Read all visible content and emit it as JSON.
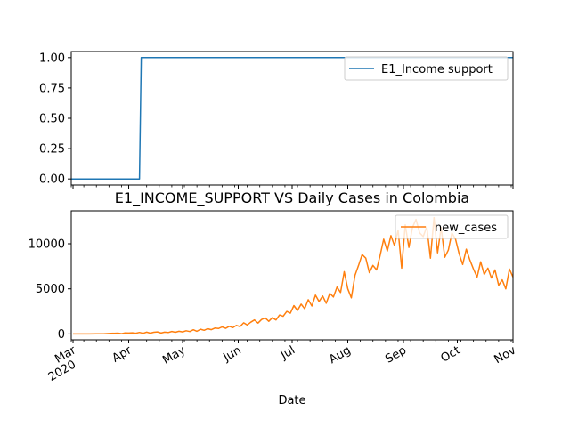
{
  "colors": {
    "top_series": "#1f77b4",
    "bottom_series": "#ff7f0e",
    "axis": "#000000",
    "legend_border": "#cccccc"
  },
  "chart_data": [
    {
      "type": "line",
      "title": "",
      "xlabel": "",
      "ylabel": "",
      "x_range": [
        "2020-02-29",
        "2020-11-01"
      ],
      "ylim": [
        -0.05,
        1.05
      ],
      "y_ticks": [
        "0.00",
        "0.25",
        "0.50",
        "0.75",
        "1.00"
      ],
      "y_tick_values": [
        0,
        0.25,
        0.5,
        0.75,
        1.0
      ],
      "grid": false,
      "legend_position": "upper right",
      "x_tick_labels_visible": false,
      "series": [
        {
          "name": "E1_Income support",
          "color": "#1f77b4",
          "points": [
            [
              "2020-02-29",
              0
            ],
            [
              "2020-04-07",
              0
            ],
            [
              "2020-04-08",
              1
            ],
            [
              "2020-11-01",
              1
            ]
          ]
        }
      ]
    },
    {
      "type": "line",
      "title": "E1_INCOME_SUPPORT VS Daily Cases in Colombia",
      "xlabel": "Date",
      "ylabel": "",
      "x_range": [
        "2020-02-29",
        "2020-11-01"
      ],
      "ylim": [
        -650,
        13650
      ],
      "y_ticks": [
        "0",
        "5000",
        "10000"
      ],
      "y_tick_values": [
        0,
        5000,
        10000
      ],
      "x_major_ticks": [
        {
          "date": "2020-03-01",
          "label": "Mar",
          "sublabel": "2020"
        },
        {
          "date": "2020-04-01",
          "label": "Apr",
          "sublabel": ""
        },
        {
          "date": "2020-05-01",
          "label": "May",
          "sublabel": ""
        },
        {
          "date": "2020-06-01",
          "label": "Jun",
          "sublabel": ""
        },
        {
          "date": "2020-07-01",
          "label": "Jul",
          "sublabel": ""
        },
        {
          "date": "2020-08-01",
          "label": "Aug",
          "sublabel": ""
        },
        {
          "date": "2020-09-01",
          "label": "Sep",
          "sublabel": ""
        },
        {
          "date": "2020-10-01",
          "label": "Oct",
          "sublabel": ""
        },
        {
          "date": "2020-11-01",
          "label": "Nov",
          "sublabel": ""
        }
      ],
      "grid": false,
      "legend_position": "upper right",
      "series": [
        {
          "name": "new_cases",
          "color": "#ff7f0e",
          "points": [
            [
              "2020-03-01",
              0
            ],
            [
              "2020-03-06",
              0
            ],
            [
              "2020-03-10",
              2
            ],
            [
              "2020-03-14",
              10
            ],
            [
              "2020-03-18",
              25
            ],
            [
              "2020-03-22",
              60
            ],
            [
              "2020-03-26",
              90
            ],
            [
              "2020-03-28",
              30
            ],
            [
              "2020-03-30",
              120
            ],
            [
              "2020-04-01",
              100
            ],
            [
              "2020-04-03",
              130
            ],
            [
              "2020-04-05",
              80
            ],
            [
              "2020-04-07",
              170
            ],
            [
              "2020-04-09",
              70
            ],
            [
              "2020-04-11",
              200
            ],
            [
              "2020-04-13",
              90
            ],
            [
              "2020-04-15",
              190
            ],
            [
              "2020-04-17",
              230
            ],
            [
              "2020-04-19",
              100
            ],
            [
              "2020-04-21",
              200
            ],
            [
              "2020-04-23",
              160
            ],
            [
              "2020-04-25",
              280
            ],
            [
              "2020-04-27",
              190
            ],
            [
              "2020-04-29",
              300
            ],
            [
              "2020-05-01",
              230
            ],
            [
              "2020-05-03",
              360
            ],
            [
              "2020-05-05",
              270
            ],
            [
              "2020-05-07",
              460
            ],
            [
              "2020-05-09",
              300
            ],
            [
              "2020-05-11",
              520
            ],
            [
              "2020-05-13",
              410
            ],
            [
              "2020-05-15",
              580
            ],
            [
              "2020-05-17",
              470
            ],
            [
              "2020-05-19",
              650
            ],
            [
              "2020-05-21",
              600
            ],
            [
              "2020-05-23",
              780
            ],
            [
              "2020-05-25",
              620
            ],
            [
              "2020-05-27",
              850
            ],
            [
              "2020-05-29",
              700
            ],
            [
              "2020-05-31",
              950
            ],
            [
              "2020-06-02",
              820
            ],
            [
              "2020-06-04",
              1230
            ],
            [
              "2020-06-06",
              1000
            ],
            [
              "2020-06-08",
              1300
            ],
            [
              "2020-06-10",
              1550
            ],
            [
              "2020-06-12",
              1200
            ],
            [
              "2020-06-14",
              1600
            ],
            [
              "2020-06-16",
              1780
            ],
            [
              "2020-06-18",
              1400
            ],
            [
              "2020-06-20",
              1800
            ],
            [
              "2020-06-22",
              1550
            ],
            [
              "2020-06-24",
              2100
            ],
            [
              "2020-06-26",
              1950
            ],
            [
              "2020-06-28",
              2500
            ],
            [
              "2020-06-30",
              2300
            ],
            [
              "2020-07-02",
              3150
            ],
            [
              "2020-07-04",
              2600
            ],
            [
              "2020-07-06",
              3300
            ],
            [
              "2020-07-08",
              2800
            ],
            [
              "2020-07-10",
              3800
            ],
            [
              "2020-07-12",
              3100
            ],
            [
              "2020-07-14",
              4300
            ],
            [
              "2020-07-16",
              3600
            ],
            [
              "2020-07-18",
              4200
            ],
            [
              "2020-07-20",
              3400
            ],
            [
              "2020-07-22",
              4500
            ],
            [
              "2020-07-24",
              4100
            ],
            [
              "2020-07-26",
              5200
            ],
            [
              "2020-07-28",
              4600
            ],
            [
              "2020-07-30",
              6900
            ],
            [
              "2020-08-01",
              5000
            ],
            [
              "2020-08-03",
              4000
            ],
            [
              "2020-08-05",
              6500
            ],
            [
              "2020-08-07",
              7600
            ],
            [
              "2020-08-09",
              8800
            ],
            [
              "2020-08-11",
              8400
            ],
            [
              "2020-08-13",
              6800
            ],
            [
              "2020-08-15",
              7600
            ],
            [
              "2020-08-17",
              7100
            ],
            [
              "2020-08-19",
              8700
            ],
            [
              "2020-08-21",
              10500
            ],
            [
              "2020-08-23",
              9200
            ],
            [
              "2020-08-25",
              10900
            ],
            [
              "2020-08-27",
              9800
            ],
            [
              "2020-08-29",
              11500
            ],
            [
              "2020-08-31",
              7300
            ],
            [
              "2020-09-02",
              12100
            ],
            [
              "2020-09-04",
              9600
            ],
            [
              "2020-09-06",
              11800
            ],
            [
              "2020-09-08",
              12700
            ],
            [
              "2020-09-10",
              11200
            ],
            [
              "2020-09-12",
              10800
            ],
            [
              "2020-09-14",
              11900
            ],
            [
              "2020-09-16",
              8400
            ],
            [
              "2020-09-18",
              12900
            ],
            [
              "2020-09-20",
              9000
            ],
            [
              "2020-09-22",
              11800
            ],
            [
              "2020-09-24",
              8500
            ],
            [
              "2020-09-26",
              9300
            ],
            [
              "2020-09-28",
              11200
            ],
            [
              "2020-09-30",
              10500
            ],
            [
              "2020-10-02",
              8900
            ],
            [
              "2020-10-04",
              7700
            ],
            [
              "2020-10-06",
              9400
            ],
            [
              "2020-10-08",
              8200
            ],
            [
              "2020-10-10",
              7200
            ],
            [
              "2020-10-12",
              6300
            ],
            [
              "2020-10-14",
              8000
            ],
            [
              "2020-10-16",
              6600
            ],
            [
              "2020-10-18",
              7300
            ],
            [
              "2020-10-20",
              6200
            ],
            [
              "2020-10-22",
              7100
            ],
            [
              "2020-10-24",
              5400
            ],
            [
              "2020-10-26",
              6000
            ],
            [
              "2020-10-28",
              5000
            ],
            [
              "2020-10-30",
              7200
            ],
            [
              "2020-11-01",
              6300
            ]
          ]
        }
      ]
    }
  ],
  "x_axis_display": {
    "major_tick_labels": [
      "Mar",
      "Apr",
      "May",
      "Jun",
      "Jul",
      "Aug",
      "Sep",
      "Oct",
      "Nov"
    ],
    "year_label": "2020"
  }
}
